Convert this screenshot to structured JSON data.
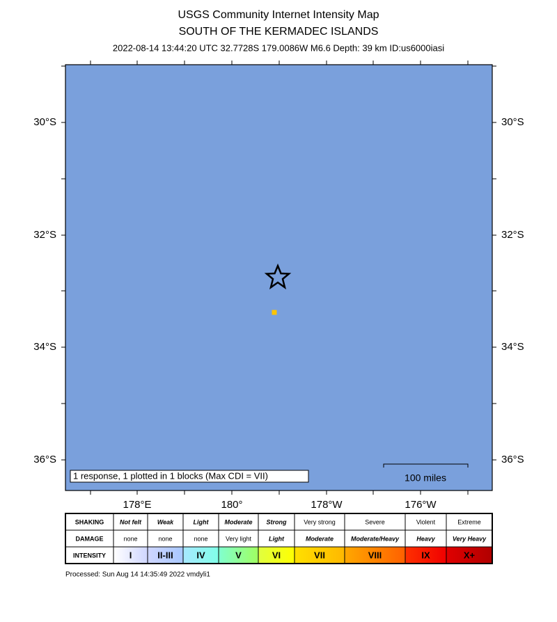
{
  "header": {
    "title": "USGS Community Internet Intensity Map",
    "region": "SOUTH OF THE KERMADEC ISLANDS",
    "details": "2022-08-14 13:44:20 UTC 32.7728S 179.0086W M6.6 Depth: 39 km ID:us6000iasi"
  },
  "map": {
    "latitude_labels": [
      "30°S",
      "32°S",
      "34°S",
      "36°S"
    ],
    "longitude_labels": [
      "178°E",
      "180°",
      "178°W",
      "176°W"
    ],
    "legend": "1 response, 1 plotted in 1 blocks (Max CDI = VII)",
    "scale": "100 miles"
  },
  "table": {
    "rows": [
      [
        "SHAKING",
        "Not felt",
        "Weak",
        "Light",
        "Moderate",
        "Strong",
        "Very strong",
        "Severe",
        "Violent",
        "Extreme"
      ],
      [
        "DAMAGE",
        "none",
        "none",
        "none",
        "Very light",
        "Light",
        "Moderate",
        "Moderate/Heavy",
        "Heavy",
        "Very Heavy"
      ],
      [
        "INTENSITY",
        "I",
        "II-III",
        "IV",
        "V",
        "VI",
        "VII",
        "VIII",
        "IX",
        "X+"
      ]
    ]
  },
  "footer": "Processed: Sun Aug 14 14:35:49 2022 vmdyli1"
}
